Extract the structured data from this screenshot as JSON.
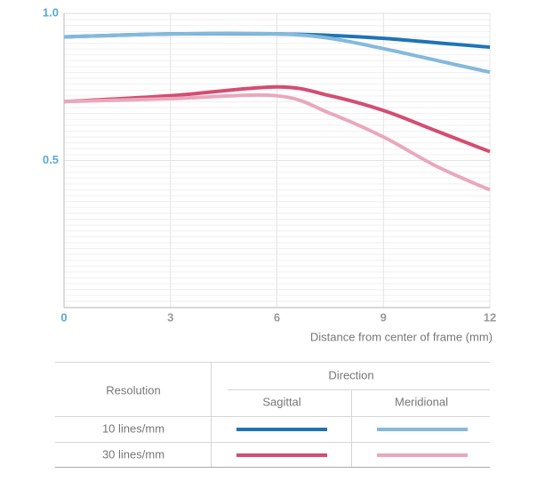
{
  "chart_data": {
    "type": "line",
    "x_label": "Distance from center of frame (mm)",
    "x": [
      0,
      3,
      6,
      7.5,
      9,
      10.5,
      12
    ],
    "xlim": [
      0,
      12
    ],
    "xticks": [
      0,
      3,
      6,
      9,
      12
    ],
    "ylim": [
      0,
      1
    ],
    "yticks": [
      {
        "value": 0.5,
        "label": "0.5"
      },
      {
        "value": 1,
        "label": "1.0"
      }
    ],
    "grid": true,
    "series": [
      {
        "color": "#1f73b7",
        "values": [
          0.92,
          0.93,
          0.93,
          0.925,
          0.915,
          0.9,
          0.885
        ]
      },
      {
        "color": "#84b9dc",
        "values": [
          0.92,
          0.93,
          0.93,
          0.915,
          0.88,
          0.84,
          0.8
        ]
      },
      {
        "color": "#d44d73",
        "values": [
          0.7,
          0.72,
          0.75,
          0.72,
          0.67,
          0.6,
          0.53
        ]
      },
      {
        "color": "#eaa8bb",
        "values": [
          0.7,
          0.71,
          0.72,
          0.66,
          0.58,
          0.48,
          0.4
        ]
      }
    ],
    "legend_table": {
      "row_header": "Resolution",
      "column_group": "Direction",
      "columns": [
        "Sagittal",
        "Meridional"
      ],
      "rows": [
        "10 lines/mm",
        "30 lines/mm"
      ]
    }
  }
}
